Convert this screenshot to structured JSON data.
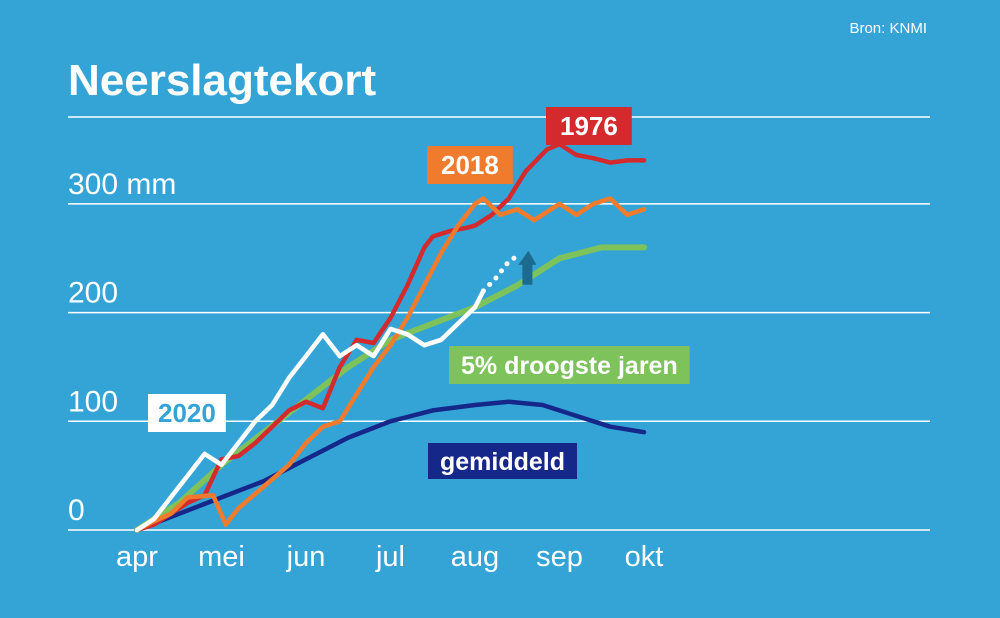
{
  "source": "Bron: KNMI",
  "title": "Neerslagtekort",
  "colors": {
    "background": "#34a4d7",
    "grid": "#ffffff",
    "y1976": "#d42a2e",
    "y2018": "#f07b2c",
    "y2020": "#ffffff",
    "droogste": "#7dc25a",
    "gemiddeld": "#15288a",
    "projection_arrow": "#1d6a8f"
  },
  "chart_data": {
    "type": "line",
    "title": "Neerslagtekort",
    "xlabel": "",
    "ylabel": "",
    "x_ticks": [
      "apr",
      "mei",
      "jun",
      "jul",
      "aug",
      "sep",
      "okt"
    ],
    "y_ticks": [
      {
        "value": 0,
        "label": "0"
      },
      {
        "value": 100,
        "label": "100"
      },
      {
        "value": 200,
        "label": "200"
      },
      {
        "value": 300,
        "label": "300 mm"
      }
    ],
    "ylim": [
      0,
      380
    ],
    "grid": true,
    "series": [
      {
        "name": "1976",
        "color_key": "y1976",
        "points": [
          [
            0,
            0
          ],
          [
            0.2,
            5
          ],
          [
            0.4,
            15
          ],
          [
            0.6,
            25
          ],
          [
            0.8,
            32
          ],
          [
            1,
            65
          ],
          [
            1.2,
            68
          ],
          [
            1.4,
            80
          ],
          [
            1.6,
            95
          ],
          [
            1.8,
            110
          ],
          [
            2,
            118
          ],
          [
            2.2,
            112
          ],
          [
            2.4,
            150
          ],
          [
            2.6,
            175
          ],
          [
            2.8,
            172
          ],
          [
            3,
            195
          ],
          [
            3.2,
            225
          ],
          [
            3.4,
            260
          ],
          [
            3.5,
            270
          ],
          [
            3.7,
            275
          ],
          [
            3.9,
            278
          ],
          [
            4,
            280
          ],
          [
            4.2,
            290
          ],
          [
            4.4,
            305
          ],
          [
            4.6,
            330
          ],
          [
            4.85,
            350
          ],
          [
            5,
            355
          ],
          [
            5.2,
            345
          ],
          [
            5.4,
            342
          ],
          [
            5.6,
            338
          ],
          [
            5.8,
            340
          ],
          [
            6,
            340
          ]
        ]
      },
      {
        "name": "2018",
        "color_key": "y2018",
        "points": [
          [
            0,
            0
          ],
          [
            0.2,
            8
          ],
          [
            0.4,
            15
          ],
          [
            0.6,
            30
          ],
          [
            0.9,
            32
          ],
          [
            1.05,
            5
          ],
          [
            1.2,
            20
          ],
          [
            1.5,
            40
          ],
          [
            1.8,
            60
          ],
          [
            2,
            80
          ],
          [
            2.2,
            95
          ],
          [
            2.4,
            100
          ],
          [
            2.6,
            125
          ],
          [
            2.8,
            150
          ],
          [
            3,
            170
          ],
          [
            3.2,
            195
          ],
          [
            3.4,
            225
          ],
          [
            3.6,
            255
          ],
          [
            3.8,
            280
          ],
          [
            4,
            300
          ],
          [
            4.1,
            305
          ],
          [
            4.3,
            290
          ],
          [
            4.5,
            295
          ],
          [
            4.7,
            285
          ],
          [
            4.9,
            295
          ],
          [
            5,
            300
          ],
          [
            5.2,
            290
          ],
          [
            5.4,
            300
          ],
          [
            5.6,
            305
          ],
          [
            5.8,
            290
          ],
          [
            6,
            295
          ]
        ]
      },
      {
        "name": "2020",
        "color_key": "y2020",
        "points": [
          [
            0,
            0
          ],
          [
            0.2,
            10
          ],
          [
            0.4,
            30
          ],
          [
            0.6,
            50
          ],
          [
            0.8,
            70
          ],
          [
            1,
            60
          ],
          [
            1.2,
            80
          ],
          [
            1.4,
            100
          ],
          [
            1.6,
            115
          ],
          [
            1.8,
            140
          ],
          [
            2,
            160
          ],
          [
            2.2,
            180
          ],
          [
            2.4,
            160
          ],
          [
            2.6,
            170
          ],
          [
            2.8,
            160
          ],
          [
            3,
            185
          ],
          [
            3.2,
            180
          ],
          [
            3.4,
            170
          ],
          [
            3.6,
            175
          ],
          [
            3.8,
            190
          ],
          [
            4,
            205
          ],
          [
            4.1,
            220
          ]
        ]
      },
      {
        "name": "2020 projectie",
        "color_key": "y2020",
        "dotted": true,
        "points": [
          [
            4.1,
            220
          ],
          [
            4.25,
            232
          ],
          [
            4.4,
            247
          ],
          [
            4.5,
            252
          ]
        ]
      },
      {
        "name": "5% droogste jaren",
        "color_key": "droogste",
        "points": [
          [
            0,
            0
          ],
          [
            0.5,
            25
          ],
          [
            1,
            60
          ],
          [
            1.5,
            90
          ],
          [
            2,
            120
          ],
          [
            2.5,
            150
          ],
          [
            3,
            175
          ],
          [
            3.5,
            190
          ],
          [
            4,
            205
          ],
          [
            4.5,
            225
          ],
          [
            5,
            250
          ],
          [
            5.5,
            260
          ],
          [
            6,
            260
          ]
        ]
      },
      {
        "name": "gemiddeld",
        "color_key": "gemiddeld",
        "points": [
          [
            0,
            0
          ],
          [
            0.5,
            15
          ],
          [
            1,
            30
          ],
          [
            1.5,
            45
          ],
          [
            2,
            65
          ],
          [
            2.5,
            85
          ],
          [
            3,
            100
          ],
          [
            3.5,
            110
          ],
          [
            4,
            115
          ],
          [
            4.4,
            118
          ],
          [
            4.8,
            115
          ],
          [
            5.2,
            105
          ],
          [
            5.6,
            95
          ],
          [
            6,
            90
          ]
        ]
      }
    ],
    "labels": [
      {
        "text": "1976",
        "series": "1976"
      },
      {
        "text": "2018",
        "series": "2018"
      },
      {
        "text": "2020",
        "series": "2020"
      },
      {
        "text": "5% droogste jaren",
        "series": "5% droogste jaren"
      },
      {
        "text": "gemiddeld",
        "series": "gemiddeld"
      }
    ]
  }
}
